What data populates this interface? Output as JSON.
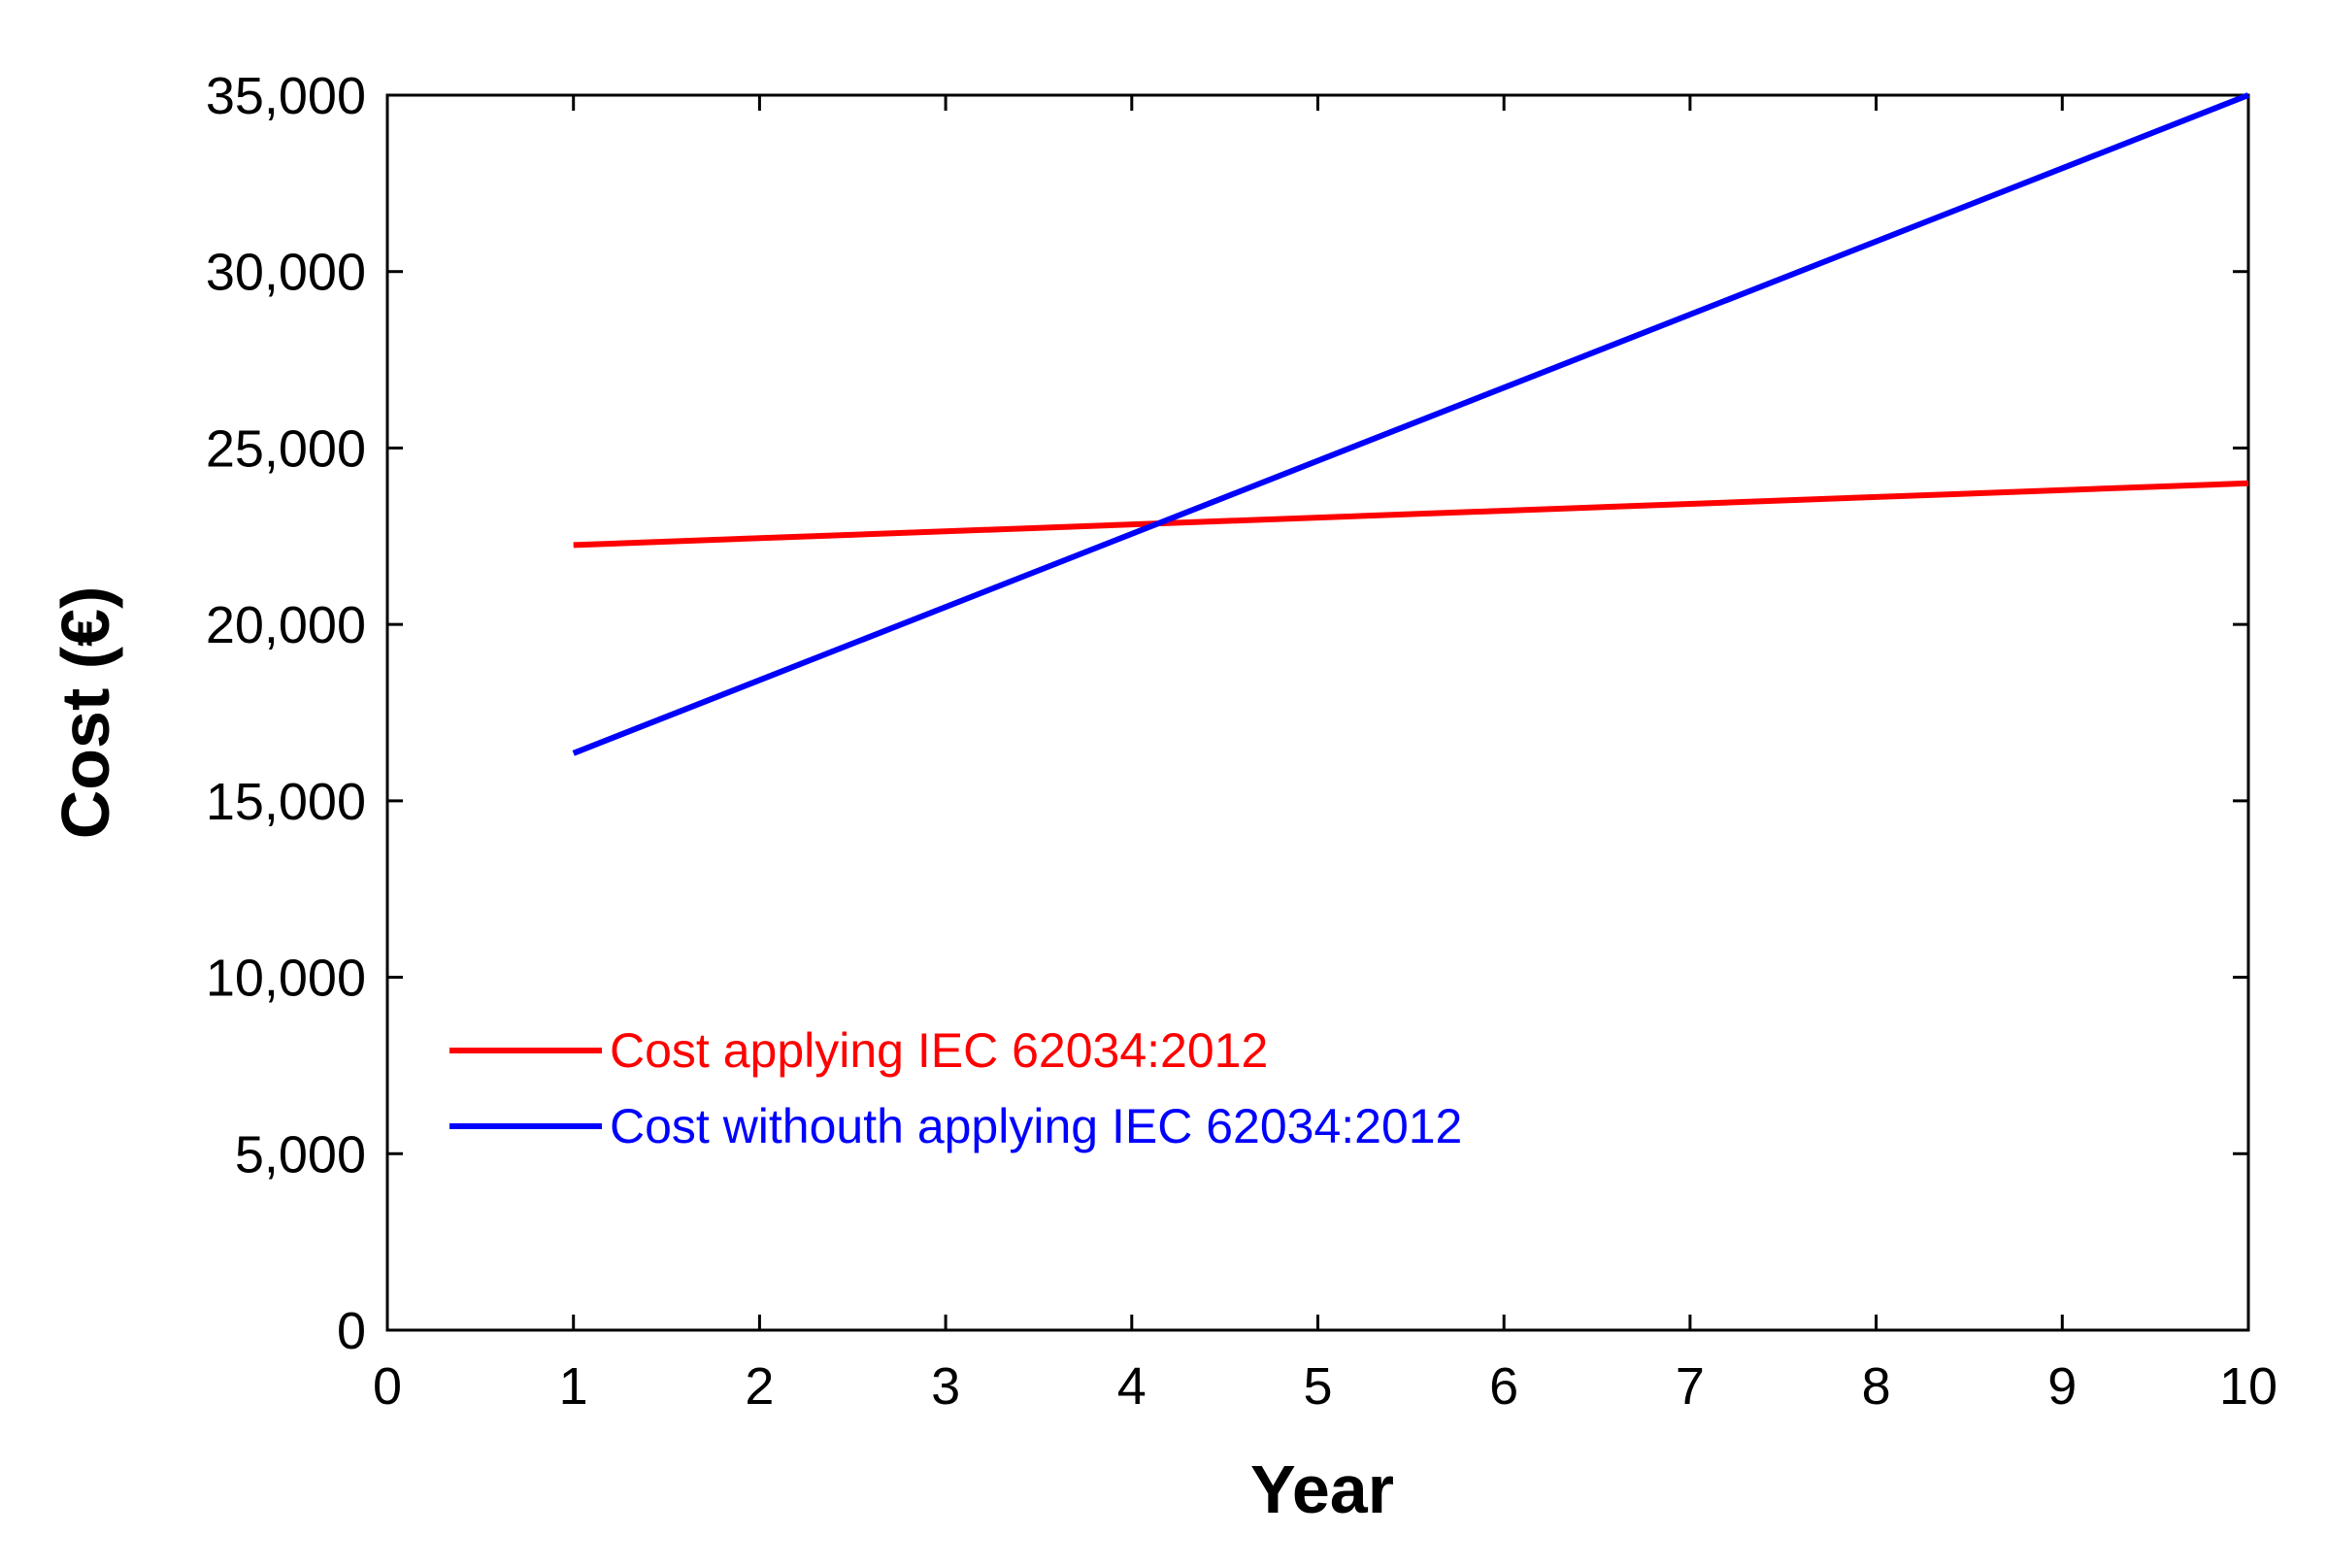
{
  "chart_data": {
    "type": "line",
    "title": "",
    "xlabel": "Year",
    "ylabel": "Cost (€)",
    "xlim": [
      0,
      10
    ],
    "ylim": [
      0,
      35000
    ],
    "x_ticks": [
      0,
      1,
      2,
      3,
      4,
      5,
      6,
      7,
      8,
      9,
      10
    ],
    "x_tick_labels": [
      "0",
      "1",
      "2",
      "3",
      "4",
      "5",
      "6",
      "7",
      "8",
      "9",
      "10"
    ],
    "y_ticks": [
      0,
      5000,
      10000,
      15000,
      20000,
      25000,
      30000,
      35000
    ],
    "y_tick_labels": [
      "0",
      "5,000",
      "10,000",
      "15,000",
      "20,000",
      "25,000",
      "30,000",
      "35,000"
    ],
    "grid": false,
    "legend_position": "lower-left",
    "series": [
      {
        "name": "Cost applying IEC 62034:2012",
        "color": "#ff0000",
        "x": [
          1,
          10
        ],
        "y": [
          22250,
          24000
        ]
      },
      {
        "name": "Cost withouth applying IEC 62034:2012",
        "color": "#0000ff",
        "x": [
          1,
          10
        ],
        "y": [
          16350,
          35000
        ]
      }
    ]
  }
}
